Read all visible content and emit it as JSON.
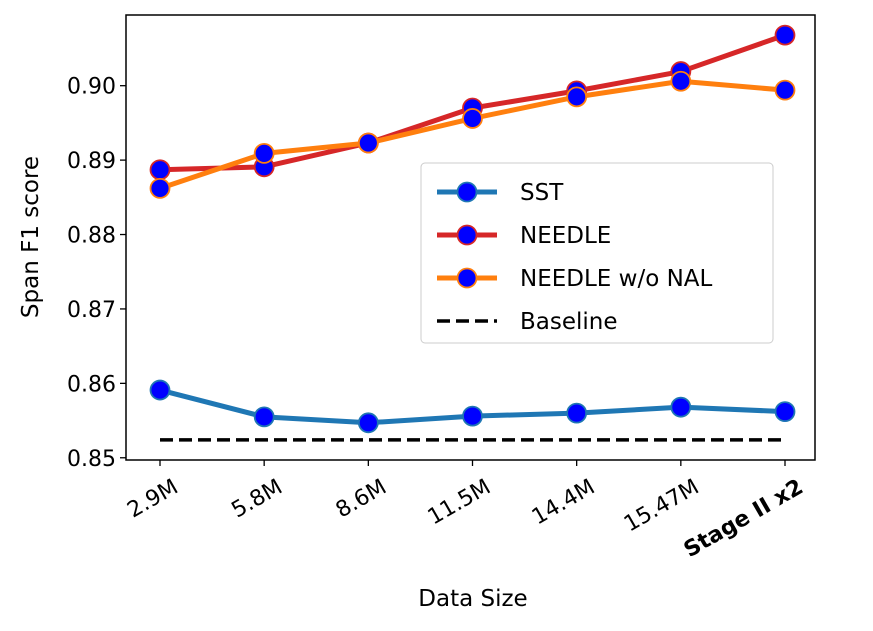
{
  "chart_data": {
    "type": "line",
    "xlabel": "Data Size",
    "ylabel": "Span F1 score",
    "categories": [
      "2.9M",
      "5.8M",
      "8.6M",
      "11.5M",
      "14.4M",
      "15.47M",
      "Stage II x2"
    ],
    "bold_categories": [
      "Stage II x2"
    ],
    "yticks": [
      0.85,
      0.86,
      0.87,
      0.88,
      0.89,
      0.9
    ],
    "ytick_labels": [
      "0.85",
      "0.86",
      "0.87",
      "0.88",
      "0.89",
      "0.90"
    ],
    "ylim": [
      0.8497,
      0.9095
    ],
    "grid": false,
    "legend_placement": "center-right",
    "marker_face_color": "#0000ff",
    "series": [
      {
        "name": "SST",
        "color": "#1f77b4",
        "values": [
          0.8591,
          0.8555,
          0.8547,
          0.8556,
          0.856,
          0.8568,
          0.8562
        ]
      },
      {
        "name": "NEEDLE",
        "color": "#d62728",
        "values": [
          0.8887,
          0.8891,
          0.8923,
          0.897,
          0.8993,
          0.9019,
          0.9068
        ]
      },
      {
        "name": "NEEDLE w/o NAL",
        "color": "#ff7f0e",
        "values": [
          0.8862,
          0.8909,
          0.8923,
          0.8956,
          0.8985,
          0.9006,
          0.8994
        ]
      },
      {
        "name": "Baseline",
        "color": "#000000",
        "style": "dashed",
        "value": 0.8524
      }
    ]
  }
}
